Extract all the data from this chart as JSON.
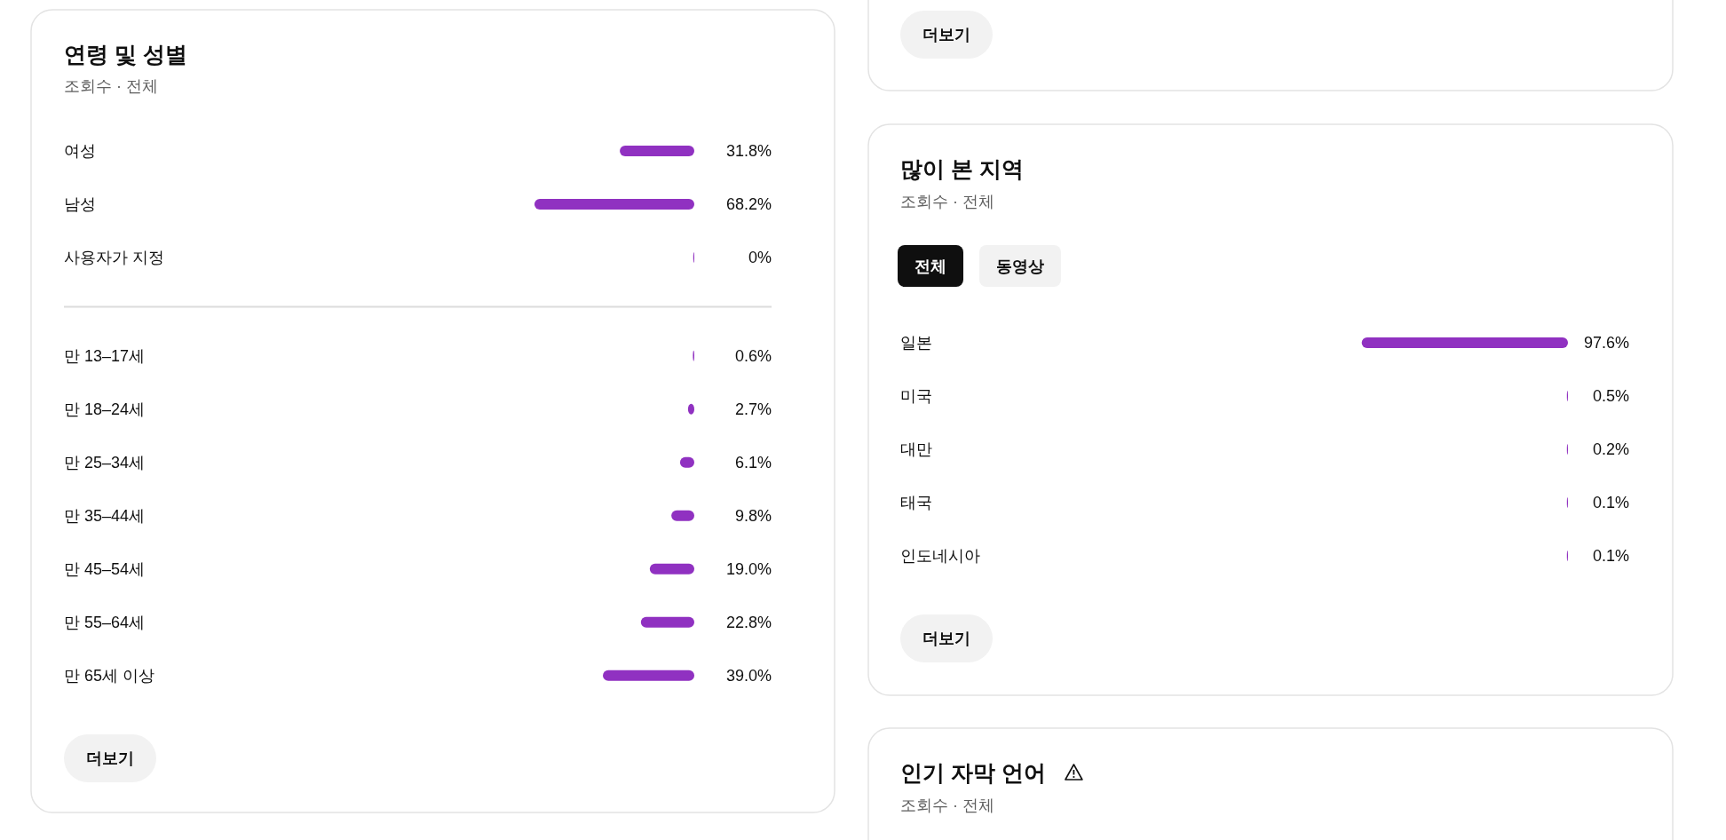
{
  "chart_data": [
    {
      "type": "bar",
      "orientation": "horizontal",
      "title": "연령 및 성별",
      "subtitle": "조회수 · 전체",
      "categories": [
        "여성",
        "남성",
        "사용자가 지정"
      ],
      "values": [
        31.8,
        68.2,
        0
      ],
      "value_labels": [
        "31.8%",
        "68.2%",
        "0%"
      ],
      "color": "#9031c1"
    },
    {
      "type": "bar",
      "orientation": "horizontal",
      "categories": [
        "만 13–17세",
        "만 18–24세",
        "만 25–34세",
        "만 35–44세",
        "만 45–54세",
        "만 55–64세",
        "만 65세 이상"
      ],
      "values": [
        0.6,
        2.7,
        6.1,
        9.8,
        19.0,
        22.8,
        39.0
      ],
      "value_labels": [
        "0.6%",
        "2.7%",
        "6.1%",
        "9.8%",
        "19.0%",
        "22.8%",
        "39.0%"
      ],
      "color": "#9031c1",
      "annotations": [
        "더보기"
      ]
    },
    {
      "type": "other",
      "annotations": [
        "더보기"
      ]
    },
    {
      "type": "bar",
      "orientation": "horizontal",
      "title": "많이 본 지역",
      "subtitle": "조회수 · 전체",
      "categories": [
        "일본",
        "미국",
        "대만",
        "태국",
        "인도네시아"
      ],
      "values": [
        97.6,
        0.5,
        0.2,
        0.1,
        0.1
      ],
      "value_labels": [
        "97.6%",
        "0.5%",
        "0.2%",
        "0.1%",
        "0.1%"
      ],
      "color": "#9031c1",
      "annotations": [
        "전체",
        "동영상",
        "더보기"
      ]
    },
    {
      "type": "other",
      "title": "인기 자막 언어",
      "subtitle": "조회수 · 전체"
    }
  ]
}
